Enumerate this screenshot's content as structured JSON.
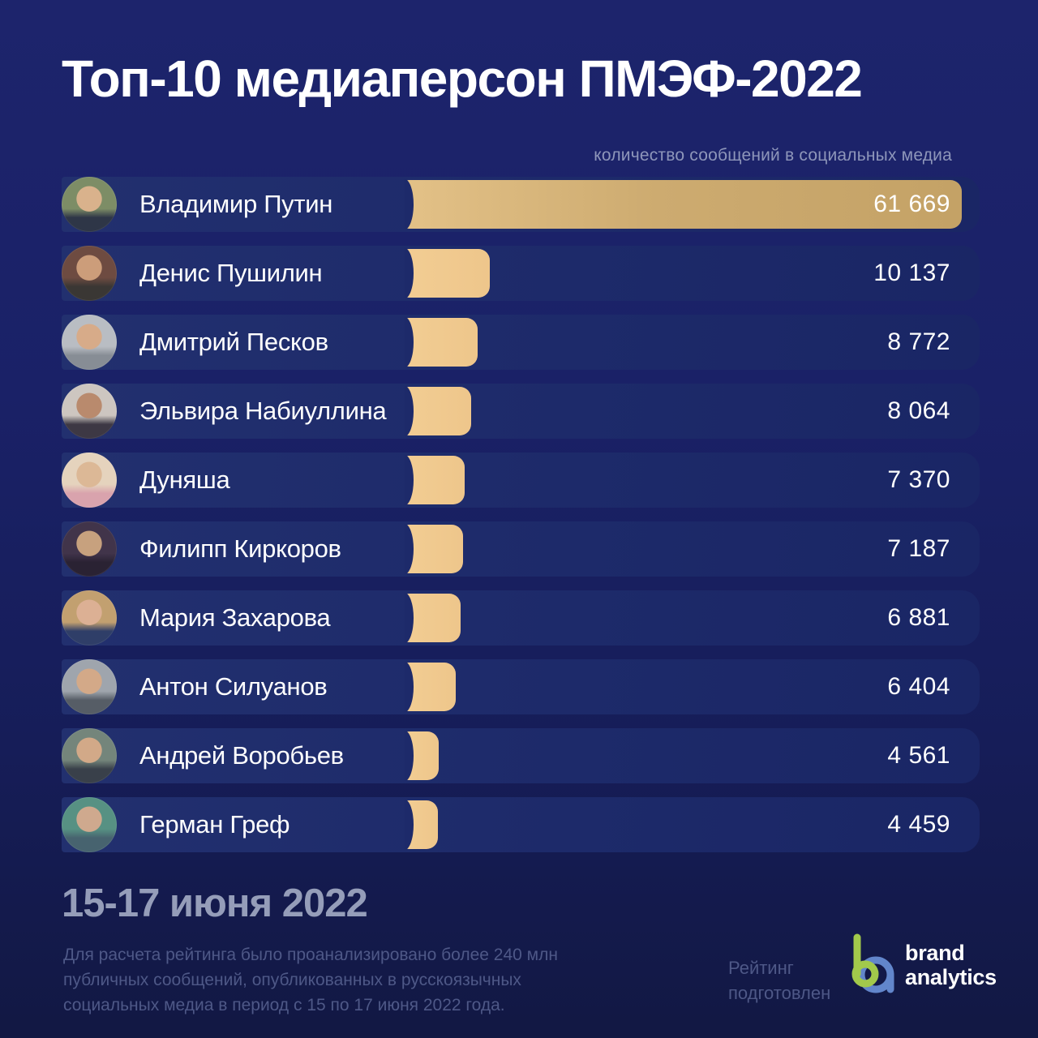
{
  "page": {
    "title": "Топ-10 медиаперсон ПМЭФ-2022",
    "subtitle": "количество сообщений в социальных медиа"
  },
  "chart_data": {
    "type": "bar",
    "orientation": "horizontal",
    "title": "Топ-10 медиаперсон ПМЭФ-2022",
    "axis_note": "количество сообщений в социальных медиа",
    "categories": [
      "Владимир Путин",
      "Денис Пушилин",
      "Дмитрий Песков",
      "Эльвира Набиуллина",
      "Дуняша",
      "Филипп Киркоров",
      "Мария Захарова",
      "Антон Силуанов",
      "Андрей Воробьев",
      "Герман Греф"
    ],
    "values": [
      61669,
      10137,
      8772,
      8064,
      7370,
      7187,
      6881,
      6404,
      4561,
      4459
    ],
    "value_labels": [
      "61 669",
      "10 137",
      "8 772",
      "8 064",
      "7 370",
      "7 187",
      "6 881",
      "6 404",
      "4 561",
      "4 459"
    ],
    "xlim": [
      0,
      61669
    ],
    "grid": false,
    "legend": false
  },
  "rows": [
    {
      "name": "Владимир Путин",
      "value": 61669,
      "label": "61 669",
      "avatar": [
        "#7d8d66",
        "#d9b28c",
        "#2e3647"
      ]
    },
    {
      "name": "Денис Пушилин",
      "value": 10137,
      "label": "10 137",
      "avatar": [
        "#6e4b41",
        "#cc9d7a",
        "#3a3734"
      ]
    },
    {
      "name": "Дмитрий Песков",
      "value": 8772,
      "label": "8 772",
      "avatar": [
        "#b9bdc3",
        "#d7ab89",
        "#878d95"
      ]
    },
    {
      "name": "Эльвира Набиуллина",
      "value": 8064,
      "label": "8 064",
      "avatar": [
        "#cdc6c0",
        "#b98a6d",
        "#3d3844"
      ]
    },
    {
      "name": "Дуняша",
      "value": 7370,
      "label": "7 370",
      "avatar": [
        "#e5d3bd",
        "#dcb896",
        "#d9a3ad"
      ]
    },
    {
      "name": "Филипп Киркоров",
      "value": 7187,
      "label": "7 187",
      "avatar": [
        "#41344a",
        "#c7a17e",
        "#2a2233"
      ]
    },
    {
      "name": "Мария Захарова",
      "value": 6881,
      "label": "6 881",
      "avatar": [
        "#c2a070",
        "#dcb094",
        "#2f3e68"
      ]
    },
    {
      "name": "Антон Силуанов",
      "value": 6404,
      "label": "6 404",
      "avatar": [
        "#9fa5ad",
        "#d3a988",
        "#565d66"
      ]
    },
    {
      "name": "Андрей Воробьев",
      "value": 4561,
      "label": "4 561",
      "avatar": [
        "#74857b",
        "#d2a988",
        "#39404a"
      ]
    },
    {
      "name": "Герман Греф",
      "value": 4459,
      "label": "4 459",
      "avatar": [
        "#579183",
        "#cfa98e",
        "#47636f"
      ]
    }
  ],
  "colors": {
    "background_top": "#1d246c",
    "background_bottom": "#121843",
    "row_background": "#1d2a6a",
    "bar_first": "linear-gradient(90deg,#e3c187 0%,#cdab70 45%,#c4a266 100%)",
    "bar_rest": "linear-gradient(90deg,#f3cf96 0%,#ecc habit 100%)",
    "bar_rest_solid": "#eec68b",
    "text_primary": "#ffffff",
    "text_muted": "#8e96ba",
    "text_footer": "#4e5887",
    "logo_green": "#a2c94b",
    "logo_blue": "#6286cb"
  },
  "footer": {
    "period_title": "15-17 июня 2022",
    "note_lines": [
      "Для расчета рейтинга было проанализировано более 240 млн",
      "публичных сообщений, опубликованных в русскоязычных",
      "социальных медиа в период с 15 по 17 июня 2022 года."
    ],
    "prepared_lines": [
      "Рейтинг",
      "подготовлен"
    ],
    "logo_line1": "brand",
    "logo_line2": "analytics"
  }
}
